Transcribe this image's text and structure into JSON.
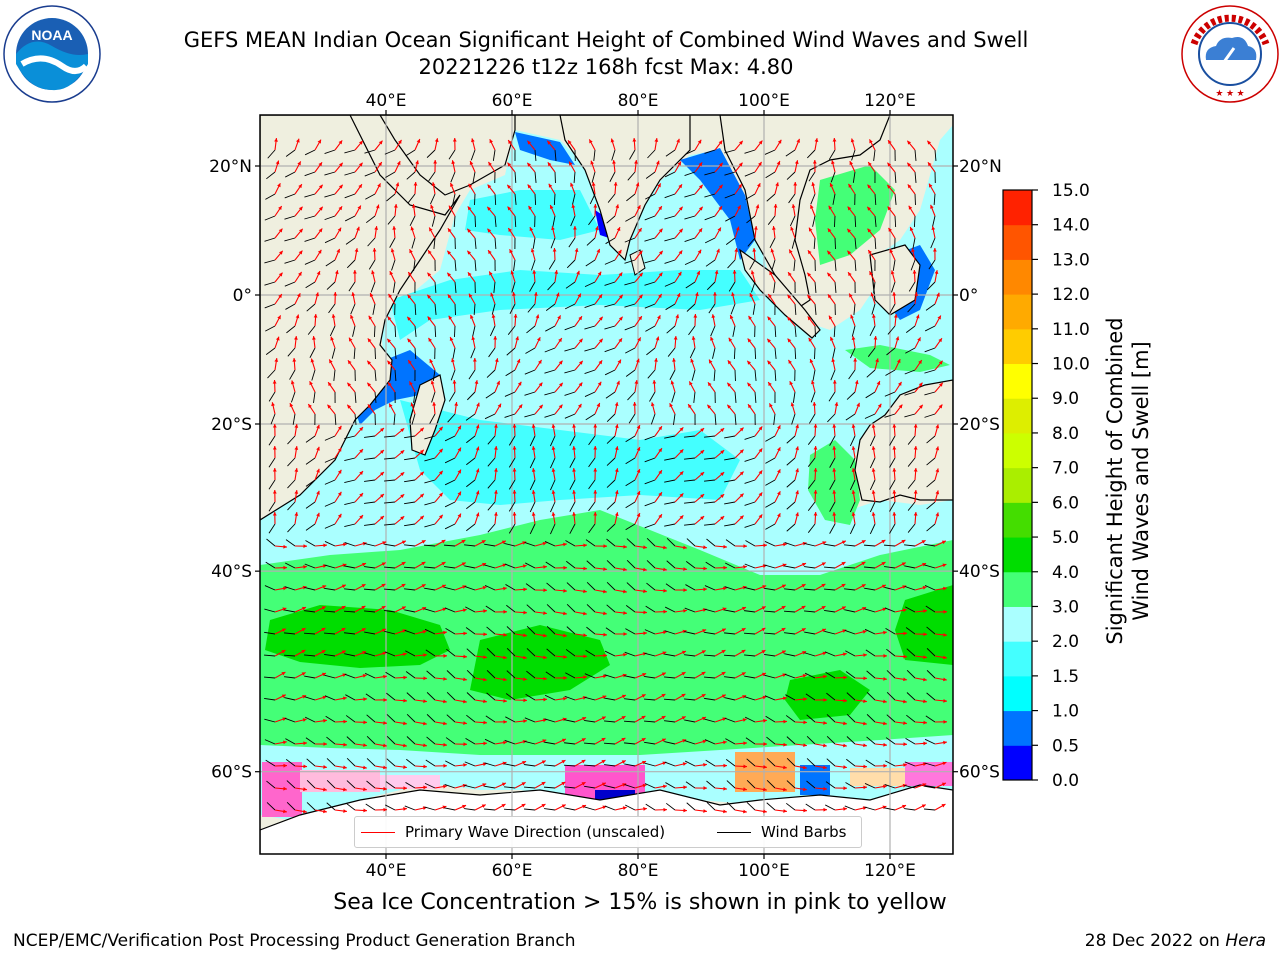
{
  "title": {
    "line1": "GEFS MEAN Indian Ocean Significant Height of Combined Wind Waves and Swell",
    "line2": "20221226 t12z 168h fcst   Max: 4.80"
  },
  "logos": {
    "left": {
      "name": "noaa-logo",
      "text": "NOAA",
      "ring_text": "NATIONAL OCEANIC AND ATMOSPHERIC ADMINISTRATION · U.S. DEPARTMENT OF COMMERCE"
    },
    "right": {
      "name": "nws-logo",
      "ring_text": "NATIONAL WEATHER SERVICE"
    }
  },
  "map": {
    "lon_labels": [
      "40°E",
      "60°E",
      "80°E",
      "100°E",
      "120°E"
    ],
    "lon_values": [
      40,
      60,
      80,
      100,
      120
    ],
    "lat_labels": [
      "20°N",
      "0°",
      "20°S",
      "40°S",
      "60°S"
    ],
    "lat_values": [
      20,
      0,
      -20,
      -40,
      -60
    ],
    "lon_range": [
      20,
      130
    ],
    "lat_range": [
      -70,
      28
    ],
    "land_color": "#efefdf",
    "ocean_base_color": "#aaffff",
    "wave_arrow_color": "#ff0000",
    "barb_color": "#000000",
    "max_value": 4.8
  },
  "legend": {
    "items": [
      {
        "label": "Primary Wave Direction (unscaled)",
        "color": "#ff0000"
      },
      {
        "label": "Wind Barbs",
        "color": "#000000"
      }
    ]
  },
  "colorbar": {
    "label_line1": "Significant Height of Combined",
    "label_line2": "Wind Waves and Swell [m]",
    "ticks": [
      "0.0",
      "0.5",
      "1.0",
      "1.5",
      "2.0",
      "3.0",
      "4.0",
      "5.0",
      "6.0",
      "7.0",
      "8.0",
      "9.0",
      "10.0",
      "11.0",
      "12.0",
      "13.0",
      "14.0",
      "15.0"
    ],
    "colors": [
      "#0000ff",
      "#0074ff",
      "#00ffff",
      "#44ffff",
      "#aaffff",
      "#44ff77",
      "#00dd00",
      "#44dd00",
      "#aaee00",
      "#ccff00",
      "#ddee00",
      "#ffff00",
      "#ffcc00",
      "#ffaa00",
      "#ff8800",
      "#ff5500",
      "#ff2200"
    ]
  },
  "caption": "Sea Ice Concentration > 15% is shown in pink to yellow",
  "footer": {
    "left": "NCEP/EMC/Verification Post Processing Product Generation Branch",
    "right_date": "28 Dec 2022 on",
    "right_host": "Hera"
  }
}
